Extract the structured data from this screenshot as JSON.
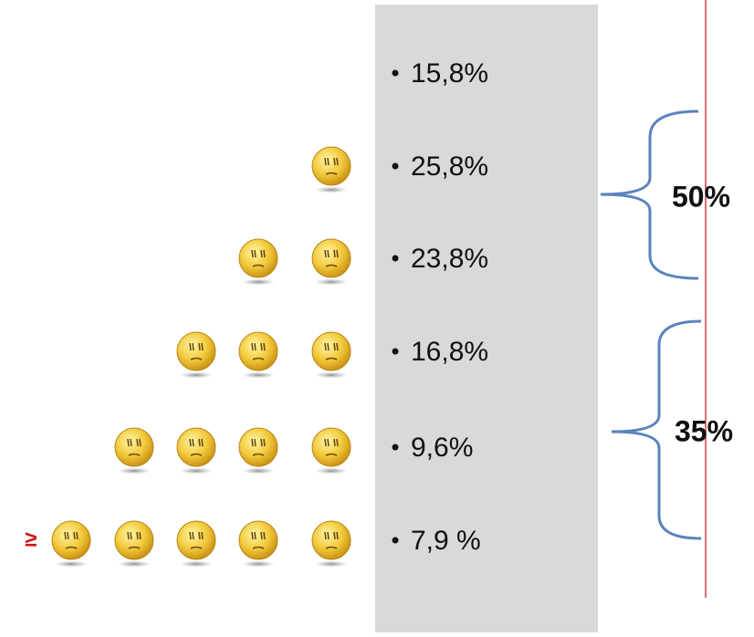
{
  "rows": [
    {
      "label": "15,8%",
      "faces": 0
    },
    {
      "label": "25,8%",
      "faces": 1
    },
    {
      "label": "23,8%",
      "faces": 2
    },
    {
      "label": "16,8%",
      "faces": 3
    },
    {
      "label": "9,6%",
      "faces": 4
    },
    {
      "label": "7,9 %",
      "faces": 5,
      "prefix": "≥"
    }
  ],
  "groups": [
    {
      "label": "50%"
    },
    {
      "label": "35%"
    }
  ]
}
